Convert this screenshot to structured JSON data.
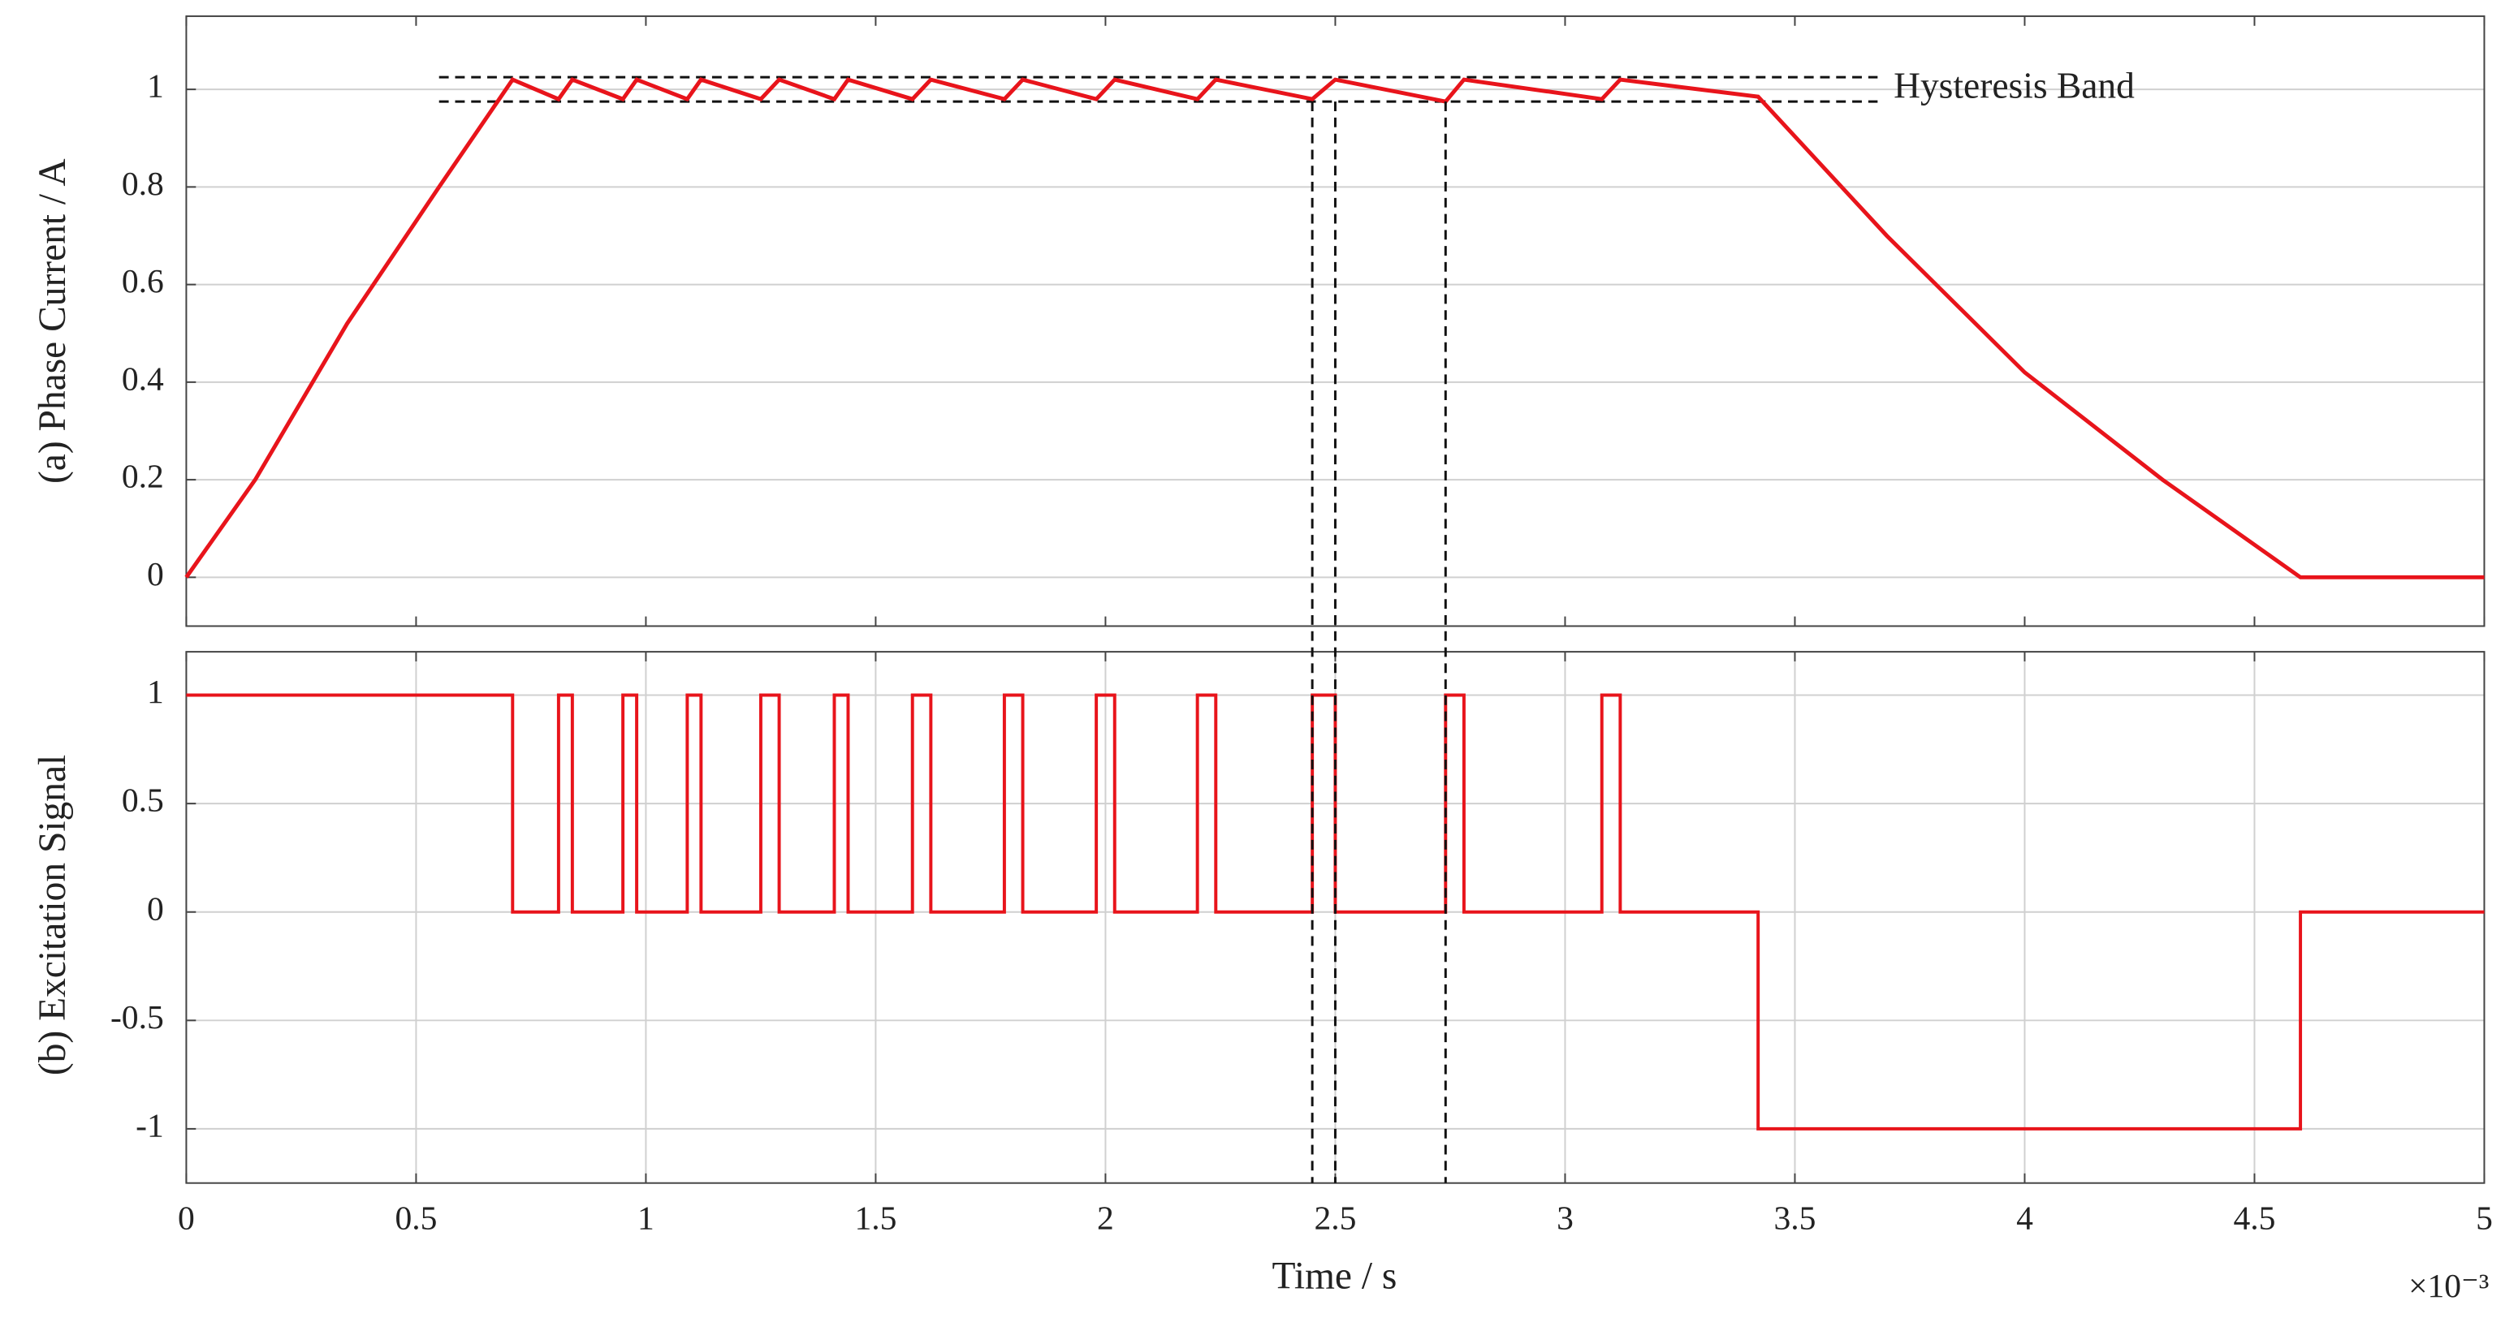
{
  "chart_data": [
    {
      "type": "line",
      "ylabel": "(a) Phase Current / A",
      "xlim": [
        0,
        5
      ],
      "xticks": [
        0,
        0.5,
        1,
        1.5,
        2,
        2.5,
        3,
        3.5,
        4,
        4.5,
        5
      ],
      "show_xtick_labels": false,
      "ylim": [
        -0.1,
        1.15
      ],
      "yticks": [
        0,
        0.2,
        0.4,
        0.6,
        0.8,
        1
      ],
      "grid": "y",
      "series": [
        {
          "name": "Phase Current",
          "color": "#e8141b",
          "x": [
            0,
            0.15,
            0.35,
            0.55,
            0.71,
            0.81,
            0.84,
            0.95,
            0.98,
            1.09,
            1.12,
            1.25,
            1.29,
            1.41,
            1.44,
            1.58,
            1.62,
            1.78,
            1.82,
            1.98,
            2.02,
            2.2,
            2.24,
            2.45,
            2.5,
            2.74,
            2.78,
            3.08,
            3.12,
            3.42,
            3.7,
            4.0,
            4.3,
            4.6,
            5
          ],
          "values": [
            0,
            0.2,
            0.52,
            0.8,
            1.02,
            0.98,
            1.02,
            0.98,
            1.02,
            0.98,
            1.02,
            0.98,
            1.02,
            0.98,
            1.02,
            0.98,
            1.02,
            0.98,
            1.02,
            0.98,
            1.02,
            0.98,
            1.02,
            0.98,
            1.02,
            0.975,
            1.02,
            0.98,
            1.02,
            0.985,
            0.7,
            0.42,
            0.2,
            0,
            0
          ]
        }
      ],
      "hlines": [
        {
          "y": 1.025,
          "xmin": 0.55,
          "xmax": 3.68
        },
        {
          "y": 0.975,
          "xmin": 0.55,
          "xmax": 3.68
        }
      ],
      "annotation": "Hysteresis Band",
      "vlines": [
        2.45,
        2.5,
        2.74
      ]
    },
    {
      "type": "line",
      "ylabel": "(b) Excitation Signal",
      "xlabel": "Time / s",
      "x_multiplier": "×10⁻³",
      "xlim": [
        0,
        5
      ],
      "xticks": [
        0,
        0.5,
        1,
        1.5,
        2,
        2.5,
        3,
        3.5,
        4,
        4.5,
        5
      ],
      "show_xtick_labels": true,
      "ylim": [
        -1.25,
        1.2
      ],
      "yticks": [
        1,
        0.5,
        0,
        -0.5,
        -1
      ],
      "grid": "both",
      "series": [
        {
          "name": "Excitation Signal",
          "color": "#e8141b",
          "x": [
            0,
            0.71,
            0.71,
            0.81,
            0.81,
            0.84,
            0.84,
            0.95,
            0.95,
            0.98,
            0.98,
            1.09,
            1.09,
            1.12,
            1.12,
            1.25,
            1.25,
            1.29,
            1.29,
            1.41,
            1.41,
            1.44,
            1.44,
            1.58,
            1.58,
            1.62,
            1.62,
            1.78,
            1.78,
            1.82,
            1.82,
            1.98,
            1.98,
            2.02,
            2.02,
            2.2,
            2.2,
            2.24,
            2.24,
            2.45,
            2.45,
            2.5,
            2.5,
            2.74,
            2.74,
            2.78,
            2.78,
            3.08,
            3.08,
            3.12,
            3.12,
            3.42,
            3.42,
            4.6,
            4.6,
            5
          ],
          "values": [
            1,
            1,
            0,
            0,
            1,
            1,
            0,
            0,
            1,
            1,
            0,
            0,
            1,
            1,
            0,
            0,
            1,
            1,
            0,
            0,
            1,
            1,
            0,
            0,
            1,
            1,
            0,
            0,
            1,
            1,
            0,
            0,
            1,
            1,
            0,
            0,
            1,
            1,
            0,
            0,
            1,
            1,
            0,
            0,
            1,
            1,
            0,
            0,
            1,
            1,
            0,
            0,
            -1,
            -1,
            0,
            0
          ]
        }
      ]
    }
  ]
}
